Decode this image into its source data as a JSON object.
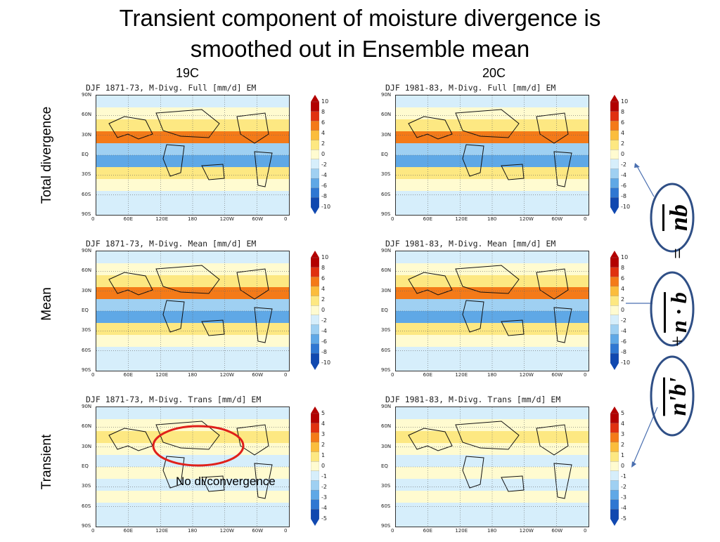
{
  "slide": {
    "title_line1": "Transient component of moisture divergence is",
    "title_line2": "smoothed out in Ensemble mean"
  },
  "columns": [
    "19C",
    "20C"
  ],
  "rows": [
    "Total divergence",
    "Mean",
    "Transient"
  ],
  "panels": [
    {
      "title": "DJF 1871-73, M-Divg. Full [mm/d] EM"
    },
    {
      "title": "DJF 1981-83, M-Divg. Full [mm/d] EM"
    },
    {
      "title": "DJF 1871-73, M-Divg. Mean [mm/d] EM"
    },
    {
      "title": "DJF 1981-83, M-Divg. Mean [mm/d] EM"
    },
    {
      "title": "DJF 1871-73, M-Divg. Trans [mm/d] EM"
    },
    {
      "title": "DJF 1981-83, M-Divg. Trans [mm/d] EM"
    }
  ],
  "lat_labels": [
    "90N",
    "60N",
    "30N",
    "EQ",
    "30S",
    "60S",
    "90S"
  ],
  "lon_labels": [
    "0",
    "60E",
    "120E",
    "180",
    "120W",
    "60W",
    "0"
  ],
  "colorbar_full": [
    "10",
    "8",
    "6",
    "4",
    "2",
    "0",
    "-2",
    "-4",
    "-6",
    "-8",
    "-10"
  ],
  "colorbar_trans": [
    "5",
    "4",
    "3",
    "2",
    "1",
    "0",
    "-1",
    "-2",
    "-3",
    "-4",
    "-5"
  ],
  "colorbar_colors": [
    "#b30000",
    "#e03010",
    "#f47a18",
    "#fbbd3c",
    "#fde882",
    "#fffbd0",
    "#d6eefb",
    "#9fd0f2",
    "#5fa8e6",
    "#2f77d2",
    "#1048b0"
  ],
  "annotation": "No di/convergence",
  "equation": {
    "lhs": "nb",
    "eq": "=",
    "term_mean": "n · b",
    "plus": "+",
    "term_trans": "n'b'"
  }
}
